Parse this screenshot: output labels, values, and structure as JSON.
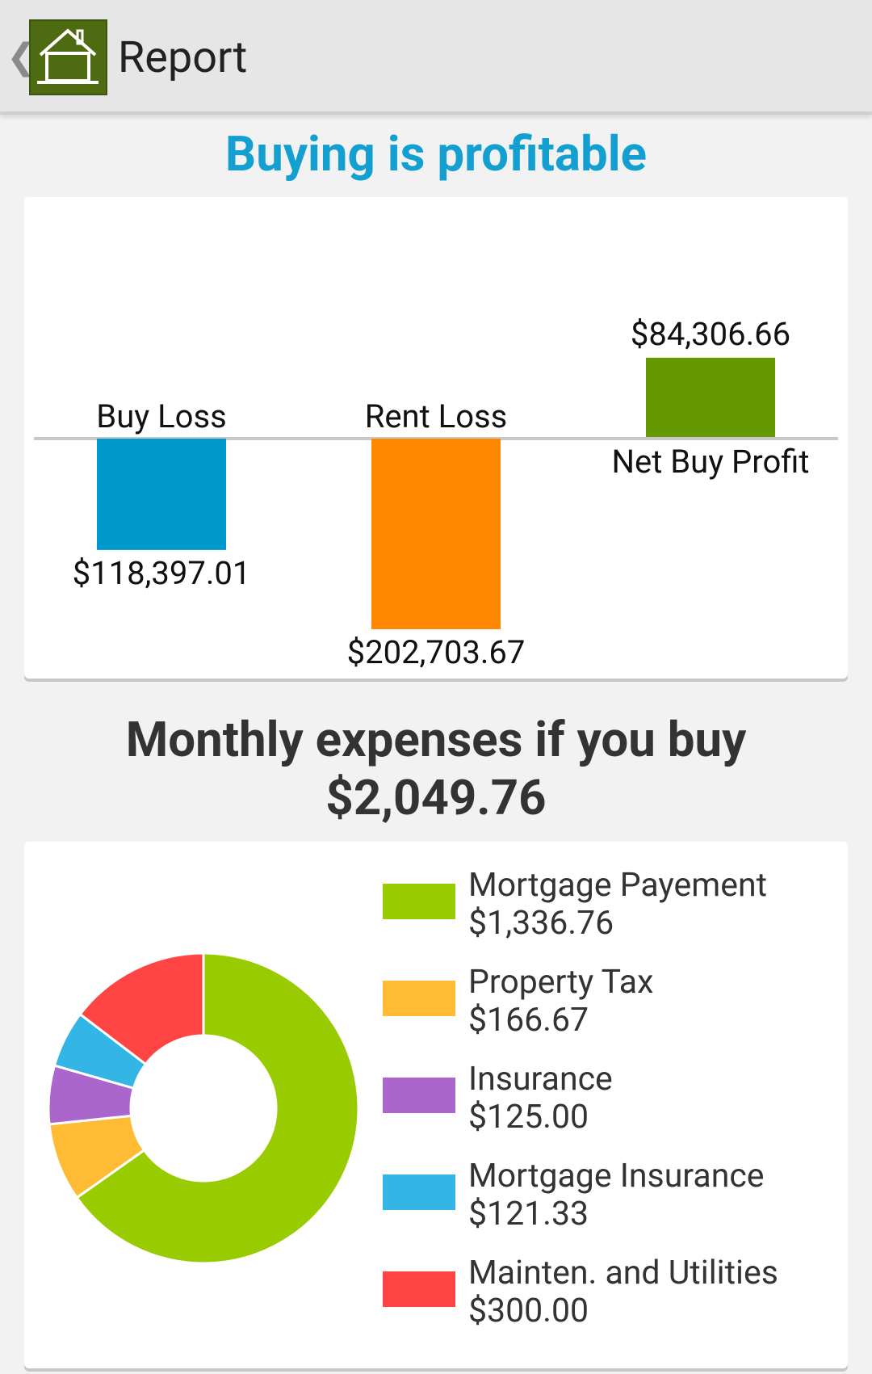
{
  "actionbar": {
    "title": "Report",
    "back_icon": "chevron-left-icon",
    "app_icon": "house-icon"
  },
  "headline": "Buying is profitable",
  "comparison_chart": {
    "type": "bar",
    "categories": [
      "Buy Loss",
      "Rent Loss",
      "Net Buy Profit"
    ],
    "values": [
      -118397.01,
      -202703.67,
      84306.66
    ],
    "value_labels": [
      "$118,397.01",
      "$202,703.67",
      "$84,306.66"
    ],
    "colors": [
      "#0099cc",
      "#ff8800",
      "#669900"
    ]
  },
  "monthly": {
    "title": "Monthly expenses if you buy",
    "total": "$2,049.76"
  },
  "chart_data": {
    "type": "pie",
    "style": "donut",
    "slices": [
      {
        "name": "Mortgage Payement",
        "value": 1336.76,
        "label": "$1,336.76",
        "color": "#99cc00"
      },
      {
        "name": "Property Tax",
        "value": 166.67,
        "label": "$166.67",
        "color": "#ffbb33"
      },
      {
        "name": "Insurance",
        "value": 125.0,
        "label": "$125.00",
        "color": "#aa66cc"
      },
      {
        "name": "Mortgage Insurance",
        "value": 121.33,
        "label": "$121.33",
        "color": "#33b5e5"
      },
      {
        "name": "Mainten. and Utilities",
        "value": 300.0,
        "label": "$300.00",
        "color": "#ff4444"
      }
    ],
    "legend_position": "right"
  }
}
